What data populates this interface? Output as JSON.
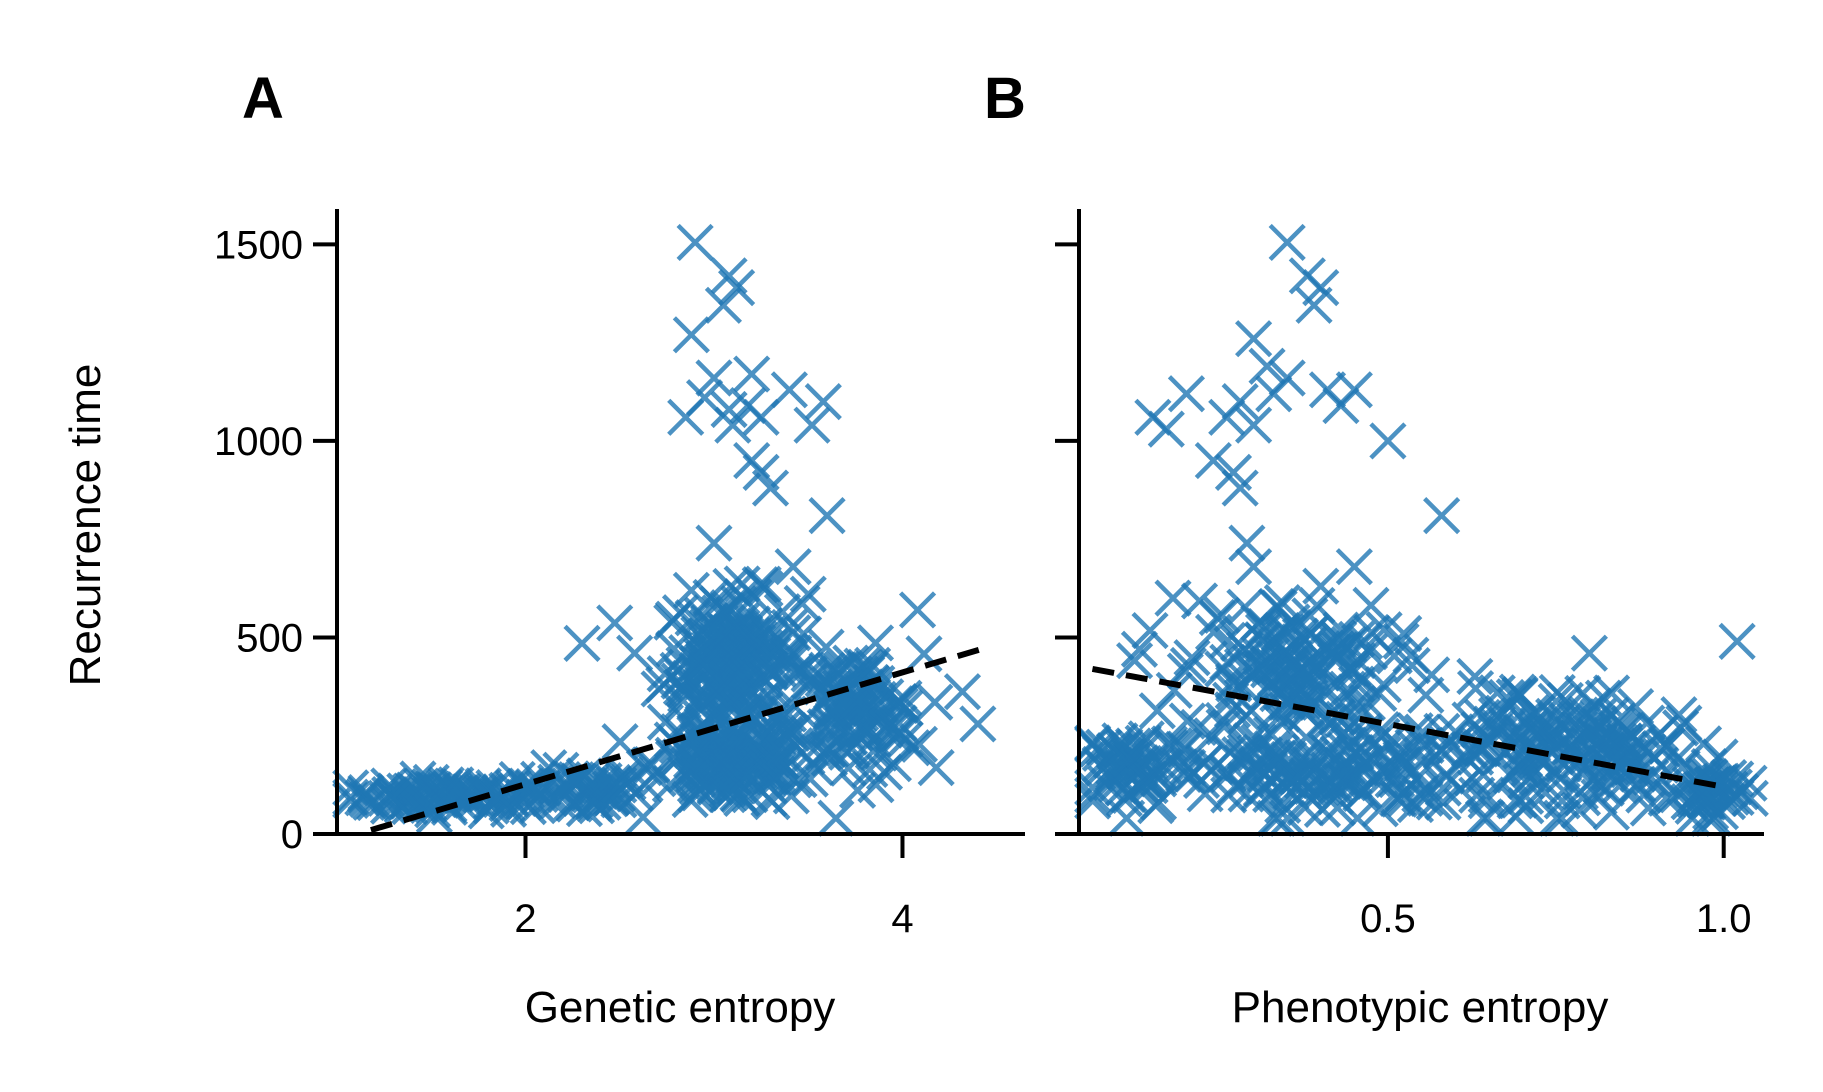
{
  "chart_data": [
    {
      "type": "scatter",
      "panel_label": "A",
      "xlabel": "Genetic entropy",
      "ylabel": "Recurrence time",
      "xlim": [
        1.0,
        4.65
      ],
      "ylim": [
        0,
        1590
      ],
      "x_ticks": [
        {
          "value": 2,
          "label": "2"
        },
        {
          "value": 4,
          "label": "4"
        }
      ],
      "y_ticks": [
        {
          "value": 0,
          "label": "0"
        },
        {
          "value": 500,
          "label": "500"
        },
        {
          "value": 1000,
          "label": "1000"
        },
        {
          "value": 1500,
          "label": "1500"
        }
      ],
      "marker": "x",
      "point_color": "#1f77b4",
      "fit_line": {
        "x": [
          1.18,
          4.45
        ],
        "y": [
          10,
          475
        ],
        "style": "dashed",
        "color": "#000000"
      },
      "clusters": [
        {
          "x_center": 1.6,
          "x_spread": 0.45,
          "y_center": 95,
          "y_spread": 30,
          "count": 90
        },
        {
          "x_center": 2.3,
          "x_spread": 0.25,
          "y_center": 110,
          "y_spread": 45,
          "count": 50
        },
        {
          "x_center": 3.1,
          "x_spread": 0.3,
          "y_center": 440,
          "y_spread": 140,
          "count": 200
        },
        {
          "x_center": 3.1,
          "x_spread": 0.35,
          "y_center": 180,
          "y_spread": 90,
          "count": 150
        },
        {
          "x_center": 3.75,
          "x_spread": 0.3,
          "y_center": 300,
          "y_spread": 130,
          "count": 110
        }
      ],
      "points": [
        {
          "x": 2.3,
          "y": 485
        },
        {
          "x": 2.9,
          "y": 1505
        },
        {
          "x": 3.08,
          "y": 1420
        },
        {
          "x": 3.12,
          "y": 1390
        },
        {
          "x": 3.05,
          "y": 1345
        },
        {
          "x": 2.88,
          "y": 1270
        },
        {
          "x": 3.0,
          "y": 1160
        },
        {
          "x": 3.2,
          "y": 1170
        },
        {
          "x": 3.4,
          "y": 1130
        },
        {
          "x": 2.95,
          "y": 1110
        },
        {
          "x": 3.08,
          "y": 1080
        },
        {
          "x": 3.18,
          "y": 1090
        },
        {
          "x": 3.25,
          "y": 1060
        },
        {
          "x": 3.58,
          "y": 1100
        },
        {
          "x": 2.85,
          "y": 1060
        },
        {
          "x": 3.52,
          "y": 1040
        },
        {
          "x": 3.1,
          "y": 1040
        },
        {
          "x": 3.2,
          "y": 950
        },
        {
          "x": 3.25,
          "y": 920
        },
        {
          "x": 3.3,
          "y": 880
        },
        {
          "x": 3.6,
          "y": 810
        },
        {
          "x": 3.0,
          "y": 740
        },
        {
          "x": 3.42,
          "y": 680
        },
        {
          "x": 4.08,
          "y": 570
        },
        {
          "x": 2.88,
          "y": 620
        },
        {
          "x": 3.5,
          "y": 610
        },
        {
          "x": 4.4,
          "y": 280
        },
        {
          "x": 1.15,
          "y": 100
        },
        {
          "x": 1.2,
          "y": 80
        }
      ]
    },
    {
      "type": "scatter",
      "panel_label": "B",
      "xlabel": "Phenotypic entropy",
      "ylabel": "",
      "xlim": [
        0.04,
        1.06
      ],
      "ylim": [
        0,
        1590
      ],
      "x_ticks": [
        {
          "value": 0.5,
          "label": "0.5"
        },
        {
          "value": 1.0,
          "label": "1.0"
        }
      ],
      "y_ticks": [
        {
          "value": 0,
          "label": ""
        },
        {
          "value": 500,
          "label": ""
        },
        {
          "value": 1000,
          "label": ""
        },
        {
          "value": 1500,
          "label": ""
        }
      ],
      "marker": "x",
      "point_color": "#1f77b4",
      "fit_line": {
        "x": [
          0.06,
          1.0
        ],
        "y": [
          420,
          120
        ],
        "style": "dashed",
        "color": "#000000"
      },
      "clusters": [
        {
          "x_center": 0.12,
          "x_spread": 0.08,
          "y_center": 170,
          "y_spread": 90,
          "count": 60
        },
        {
          "x_center": 0.35,
          "x_spread": 0.13,
          "y_center": 420,
          "y_spread": 150,
          "count": 150
        },
        {
          "x_center": 0.4,
          "x_spread": 0.18,
          "y_center": 150,
          "y_spread": 90,
          "count": 140
        },
        {
          "x_center": 0.68,
          "x_spread": 0.12,
          "y_center": 230,
          "y_spread": 130,
          "count": 90
        },
        {
          "x_center": 0.85,
          "x_spread": 0.12,
          "y_center": 200,
          "y_spread": 110,
          "count": 100
        },
        {
          "x_center": 0.98,
          "x_spread": 0.04,
          "y_center": 100,
          "y_spread": 50,
          "count": 40
        }
      ],
      "points": [
        {
          "x": 0.35,
          "y": 1505
        },
        {
          "x": 0.38,
          "y": 1420
        },
        {
          "x": 0.4,
          "y": 1390
        },
        {
          "x": 0.39,
          "y": 1345
        },
        {
          "x": 0.3,
          "y": 1260
        },
        {
          "x": 0.32,
          "y": 1190
        },
        {
          "x": 0.35,
          "y": 1160
        },
        {
          "x": 0.33,
          "y": 1120
        },
        {
          "x": 0.41,
          "y": 1130
        },
        {
          "x": 0.2,
          "y": 1120
        },
        {
          "x": 0.28,
          "y": 1100
        },
        {
          "x": 0.45,
          "y": 1130
        },
        {
          "x": 0.15,
          "y": 1060
        },
        {
          "x": 0.17,
          "y": 1030
        },
        {
          "x": 0.26,
          "y": 1060
        },
        {
          "x": 0.3,
          "y": 1040
        },
        {
          "x": 0.43,
          "y": 1090
        },
        {
          "x": 0.24,
          "y": 950
        },
        {
          "x": 0.27,
          "y": 920
        },
        {
          "x": 0.28,
          "y": 880
        },
        {
          "x": 0.5,
          "y": 1000
        },
        {
          "x": 0.58,
          "y": 810
        },
        {
          "x": 0.29,
          "y": 740
        },
        {
          "x": 0.3,
          "y": 680
        },
        {
          "x": 0.45,
          "y": 680
        },
        {
          "x": 1.02,
          "y": 490
        },
        {
          "x": 0.18,
          "y": 600
        },
        {
          "x": 0.8,
          "y": 460
        },
        {
          "x": 0.13,
          "y": 470
        }
      ]
    }
  ]
}
